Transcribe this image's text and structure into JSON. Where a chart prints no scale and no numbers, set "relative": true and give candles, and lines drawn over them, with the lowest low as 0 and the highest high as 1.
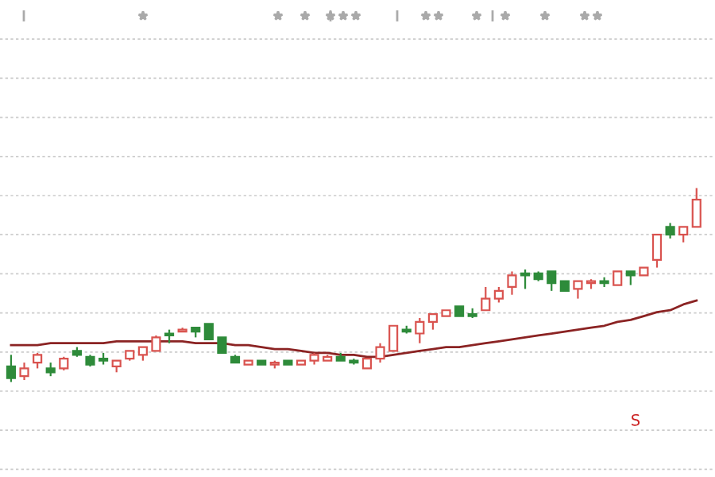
{
  "chart_data": {
    "type": "candlestick",
    "relative": true,
    "grid": "y",
    "categories": [
      null,
      null,
      null,
      null,
      null,
      null,
      null,
      null,
      null,
      null,
      null,
      null,
      null,
      null,
      null,
      null,
      null,
      null,
      null,
      null,
      null,
      null,
      null,
      null,
      null,
      null,
      null,
      null,
      null,
      null,
      null,
      null,
      null,
      null,
      null,
      null,
      null,
      null,
      null,
      null,
      null,
      null,
      null,
      null,
      null,
      null,
      null,
      null,
      null,
      null,
      null,
      null,
      null
    ],
    "ohlc": [
      [
        0.08,
        0.14,
        0,
        0.02
      ],
      [
        0.03,
        0.1,
        0.01,
        0.07
      ],
      [
        0.1,
        0.15,
        0.07,
        0.14
      ],
      [
        0.07,
        0.1,
        0.03,
        0.05
      ],
      [
        0.07,
        0.13,
        0.06,
        0.12
      ],
      [
        0.16,
        0.18,
        0.13,
        0.14
      ],
      [
        0.13,
        0.14,
        0.08,
        0.09
      ],
      [
        0.12,
        0.15,
        0.09,
        0.11
      ],
      [
        0.08,
        0.11,
        0.05,
        0.11
      ],
      [
        0.12,
        0.16,
        0.11,
        0.16
      ],
      [
        0.14,
        0.18,
        0.11,
        0.18
      ],
      [
        0.16,
        0.24,
        0.16,
        0.23
      ],
      [
        0.25,
        0.27,
        0.2,
        0.24
      ],
      [
        0.26,
        0.28,
        0.26,
        0.27
      ],
      [
        0.28,
        0.28,
        0.23,
        0.26
      ],
      [
        0.3,
        0.3,
        0.22,
        0.22
      ],
      [
        0.23,
        0.23,
        0.15,
        0.15
      ],
      [
        0.13,
        0.14,
        0.1,
        0.1
      ],
      [
        0.09,
        0.11,
        0.09,
        0.11
      ],
      [
        0.11,
        0.11,
        0.09,
        0.09
      ],
      [
        0.09,
        0.11,
        0.07,
        0.1
      ],
      [
        0.11,
        0.11,
        0.09,
        0.09
      ],
      [
        0.09,
        0.11,
        0.09,
        0.11
      ],
      [
        0.11,
        0.15,
        0.09,
        0.14
      ],
      [
        0.11,
        0.14,
        0.11,
        0.13
      ],
      [
        0.13,
        0.15,
        0.11,
        0.11
      ],
      [
        0.11,
        0.12,
        0.09,
        0.1
      ],
      [
        0.07,
        0.12,
        0.07,
        0.12
      ],
      [
        0.12,
        0.2,
        0.1,
        0.18
      ],
      [
        0.16,
        0.29,
        0.16,
        0.29
      ],
      [
        0.27,
        0.29,
        0.25,
        0.26
      ],
      [
        0.25,
        0.33,
        0.2,
        0.31
      ],
      [
        0.31,
        0.35,
        0.27,
        0.35
      ],
      [
        0.34,
        0.37,
        0.34,
        0.37
      ],
      [
        0.39,
        0.39,
        0.34,
        0.34
      ],
      [
        0.35,
        0.38,
        0.33,
        0.34
      ],
      [
        0.37,
        0.49,
        0.37,
        0.43
      ],
      [
        0.43,
        0.49,
        0.41,
        0.47
      ],
      [
        0.49,
        0.57,
        0.45,
        0.55
      ],
      [
        0.56,
        0.58,
        0.48,
        0.55
      ],
      [
        0.56,
        0.57,
        0.52,
        0.53
      ],
      [
        0.57,
        0.57,
        0.47,
        0.51
      ],
      [
        0.52,
        0.52,
        0.47,
        0.47
      ],
      [
        0.48,
        0.52,
        0.43,
        0.52
      ],
      [
        0.51,
        0.53,
        0.48,
        0.52
      ],
      [
        0.52,
        0.54,
        0.49,
        0.51
      ],
      [
        0.5,
        0.57,
        0.5,
        0.57
      ],
      [
        0.57,
        0.57,
        0.5,
        0.55
      ],
      [
        0.55,
        0.59,
        0.55,
        0.59
      ],
      [
        0.63,
        0.76,
        0.59,
        0.76
      ],
      [
        0.8,
        0.82,
        0.74,
        0.76
      ],
      [
        0.76,
        0.8,
        0.72,
        0.8
      ],
      [
        0.8,
        1.0,
        0.8,
        0.94
      ]
    ],
    "colors": [
      "#2e8b3a",
      "#d9534f",
      "#d9534f",
      "#2e8b3a",
      "#d9534f",
      "#2e8b3a",
      "#2e8b3a",
      "#2e8b3a",
      "#d9534f",
      "#d9534f",
      "#d9534f",
      "#d9534f",
      "#2e8b3a",
      "#d9534f",
      "#2e8b3a",
      "#2e8b3a",
      "#2e8b3a",
      "#2e8b3a",
      "#d9534f",
      "#2e8b3a",
      "#d9534f",
      "#2e8b3a",
      "#d9534f",
      "#d9534f",
      "#d9534f",
      "#2e8b3a",
      "#2e8b3a",
      "#d9534f",
      "#d9534f",
      "#d9534f",
      "#2e8b3a",
      "#d9534f",
      "#d9534f",
      "#d9534f",
      "#2e8b3a",
      "#2e8b3a",
      "#d9534f",
      "#d9534f",
      "#d9534f",
      "#2e8b3a",
      "#2e8b3a",
      "#2e8b3a",
      "#2e8b3a",
      "#d9534f",
      "#d9534f",
      "#2e8b3a",
      "#d9534f",
      "#2e8b3a",
      "#d9534f",
      "#d9534f",
      "#2e8b3a",
      "#d9534f",
      "#d9534f"
    ],
    "series": [
      {
        "type": "line",
        "color": "#8b2323",
        "values": [
          0.19,
          0.19,
          0.19,
          0.2,
          0.2,
          0.2,
          0.2,
          0.2,
          0.21,
          0.21,
          0.21,
          0.21,
          0.21,
          0.21,
          0.2,
          0.2,
          0.2,
          0.19,
          0.19,
          0.18,
          0.17,
          0.17,
          0.16,
          0.15,
          0.15,
          0.14,
          0.14,
          0.13,
          0.13,
          0.14,
          0.15,
          0.16,
          0.17,
          0.18,
          0.18,
          0.19,
          0.2,
          0.21,
          0.22,
          0.23,
          0.24,
          0.25,
          0.26,
          0.27,
          0.28,
          0.29,
          0.31,
          0.32,
          0.34,
          0.36,
          0.37,
          0.4,
          0.42
        ]
      }
    ],
    "annotations": [
      "S"
    ]
  }
}
